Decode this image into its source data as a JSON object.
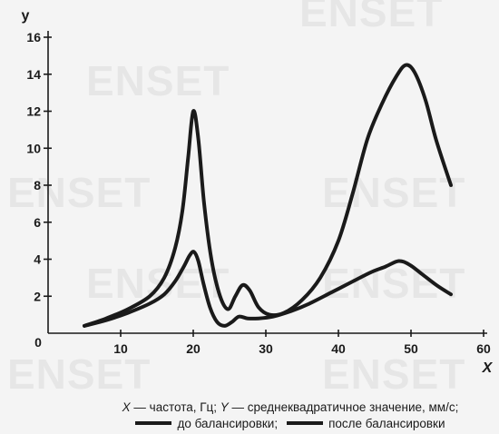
{
  "watermark": {
    "text": "ENSET"
  },
  "chart_data": {
    "type": "line",
    "title": "",
    "xlabel": "X",
    "ylabel": "y",
    "xlim": [
      0,
      60
    ],
    "ylim": [
      0,
      16
    ],
    "origin_label": "0",
    "x_ticks": [
      10,
      20,
      30,
      40,
      50,
      60
    ],
    "y_ticks": [
      2,
      4,
      6,
      8,
      10,
      12,
      14,
      16
    ],
    "grid": false,
    "legend_position": "bottom",
    "line_color": "#1a1a1a",
    "series": [
      {
        "name": "до балансировки",
        "x": [
          5,
          8,
          11,
          14,
          16,
          17.5,
          18.5,
          19.3,
          20,
          20.7,
          21.5,
          22.5,
          23.7,
          24.8,
          25.8,
          26.8,
          27.8,
          29,
          30.5,
          32.5,
          35,
          37.5,
          40,
          42,
          44,
          46,
          48,
          49.3,
          50.5,
          52,
          53.5,
          55.5
        ],
        "y": [
          0.4,
          0.8,
          1.3,
          2.0,
          3.0,
          4.6,
          6.6,
          9.5,
          12.0,
          10.5,
          7.0,
          4.0,
          2.0,
          1.3,
          2.0,
          2.6,
          2.3,
          1.4,
          1.0,
          1.1,
          1.8,
          3.0,
          5.0,
          7.6,
          10.5,
          12.4,
          13.9,
          14.5,
          14.1,
          12.6,
          10.4,
          8.0
        ]
      },
      {
        "name": "после балансировки",
        "x": [
          5,
          8,
          11,
          14,
          16,
          17.5,
          18.7,
          19.5,
          20.1,
          20.7,
          21.4,
          22.3,
          23.3,
          24.3,
          25.3,
          26.3,
          27.5,
          29,
          31,
          33.5,
          36,
          39,
          42,
          44.5,
          46.5,
          48.3,
          49.8,
          51.5,
          53.5,
          55.5
        ],
        "y": [
          0.4,
          0.7,
          1.1,
          1.6,
          2.1,
          2.8,
          3.6,
          4.2,
          4.4,
          3.9,
          2.7,
          1.4,
          0.6,
          0.4,
          0.6,
          0.9,
          0.8,
          0.8,
          0.9,
          1.2,
          1.6,
          2.2,
          2.8,
          3.3,
          3.6,
          3.9,
          3.7,
          3.2,
          2.6,
          2.1
        ]
      }
    ]
  },
  "caption": {
    "x_symbol": "X",
    "x_text": " — частота, Гц; ",
    "y_symbol": "Y",
    "y_text": " — среднеквадратичное значение, мм/с;",
    "legend_separator": ";"
  }
}
